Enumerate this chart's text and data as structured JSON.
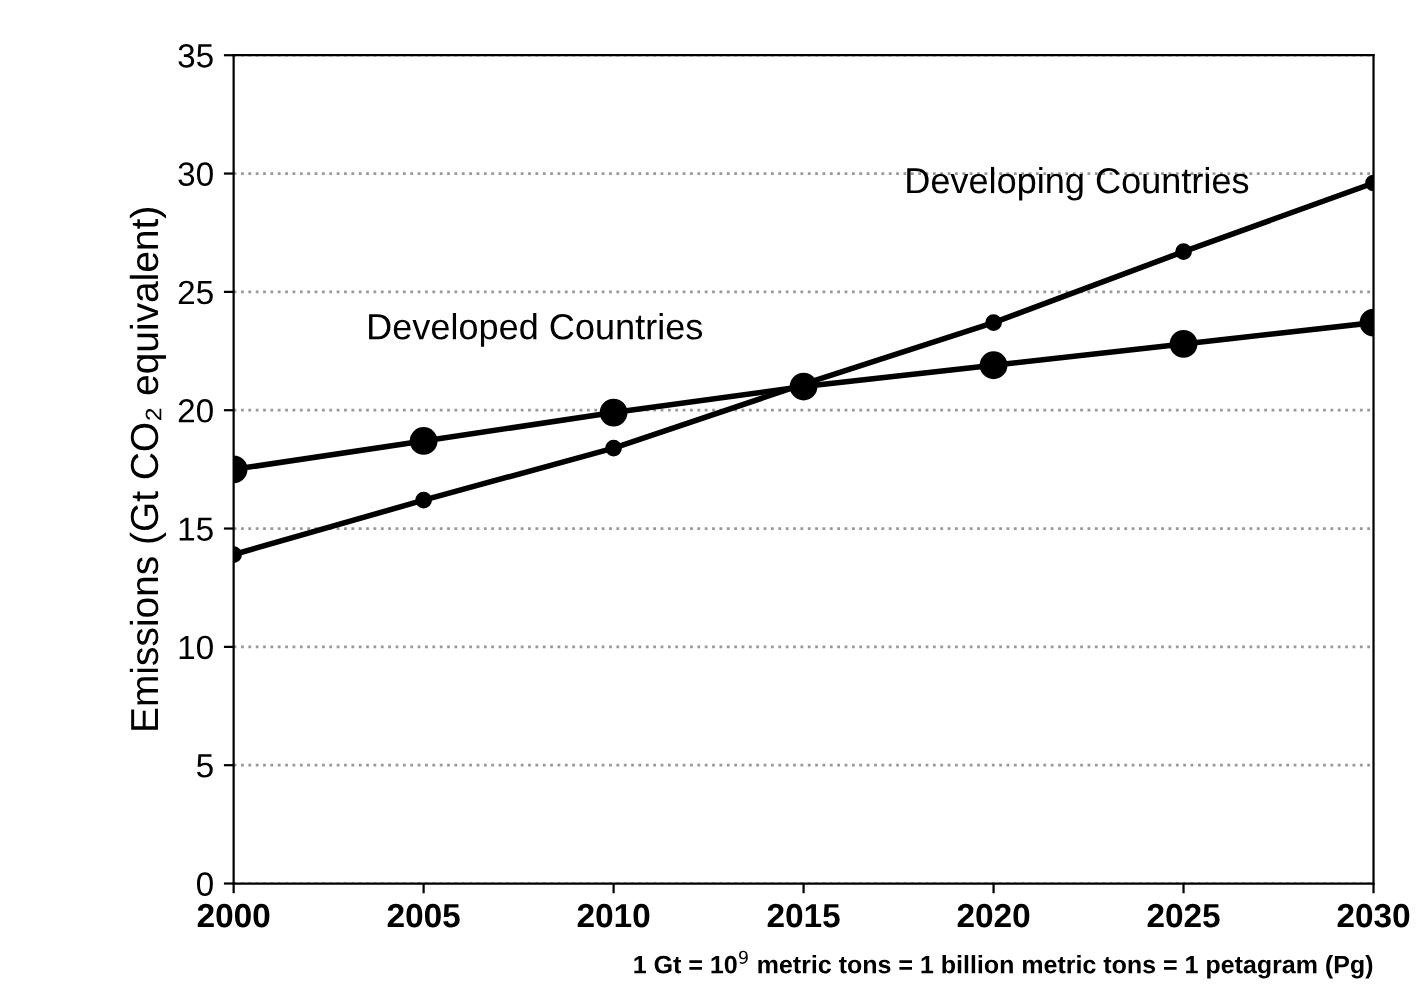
{
  "chart_data": {
    "type": "line",
    "ylabel": "Emissions (Gt CO₂ equivalent)",
    "x": [
      2000,
      2005,
      2010,
      2015,
      2020,
      2025,
      2030
    ],
    "series": [
      {
        "name": "Developed Countries",
        "color": "#000000",
        "values": [
          17.5,
          18.7,
          19.9,
          21.0,
          21.9,
          22.8,
          23.7
        ]
      },
      {
        "name": "Developing Countries",
        "color": "#000000",
        "values": [
          13.9,
          16.2,
          18.4,
          21.1,
          23.7,
          26.7,
          29.6
        ]
      }
    ],
    "xlim": [
      2000,
      2030
    ],
    "xticks": [
      2000,
      2005,
      2010,
      2015,
      2020,
      2025,
      2030
    ],
    "ylim": [
      0,
      35
    ],
    "yticks": [
      0,
      5,
      10,
      15,
      20,
      25,
      30,
      35
    ],
    "grid": "y",
    "marker": "circle",
    "line_style": "solid",
    "legend": false,
    "annotations": [
      "1 Gt = 10$^{9}$ metric tons = 1 billion metric tons = 1 petagram (Pg)"
    ]
  }
}
